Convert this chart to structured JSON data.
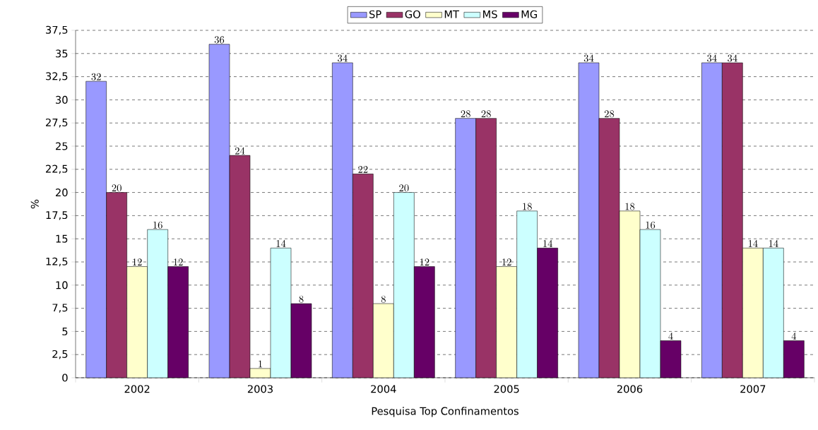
{
  "chart_data": {
    "type": "bar",
    "xlabel": "Pesquisa Top Confinamentos",
    "ylabel": "%",
    "categories": [
      "2002",
      "2003",
      "2004",
      "2005",
      "2006",
      "2007"
    ],
    "series": [
      {
        "name": "SP",
        "color": "#9999ff",
        "values": [
          32,
          36,
          34,
          28,
          34,
          34
        ]
      },
      {
        "name": "GO",
        "color": "#993366",
        "values": [
          20,
          24,
          22,
          28,
          28,
          34
        ]
      },
      {
        "name": "MT",
        "color": "#ffffcc",
        "values": [
          12,
          1,
          8,
          12,
          18,
          14
        ]
      },
      {
        "name": "MS",
        "color": "#ccffff",
        "values": [
          16,
          14,
          20,
          18,
          16,
          14
        ]
      },
      {
        "name": "MG",
        "color": "#660066",
        "values": [
          12,
          8,
          12,
          14,
          4,
          4
        ]
      }
    ],
    "ylim": [
      0,
      37.5
    ],
    "yticks": [
      0,
      {
        "value": 2.5,
        "label": "2,5"
      },
      5,
      {
        "value": 7.5,
        "label": "7,5"
      },
      10,
      {
        "value": 12.5,
        "label": "12,5"
      },
      15,
      {
        "value": 17.5,
        "label": "17,5"
      },
      20,
      {
        "value": 22.5,
        "label": "22,5"
      },
      25,
      {
        "value": 27.5,
        "label": "27,5"
      },
      30,
      {
        "value": 32.5,
        "label": "32,5"
      },
      35,
      {
        "value": 37.5,
        "label": "37,5"
      }
    ],
    "grid": "y",
    "legend": "top",
    "data_labels": true
  }
}
